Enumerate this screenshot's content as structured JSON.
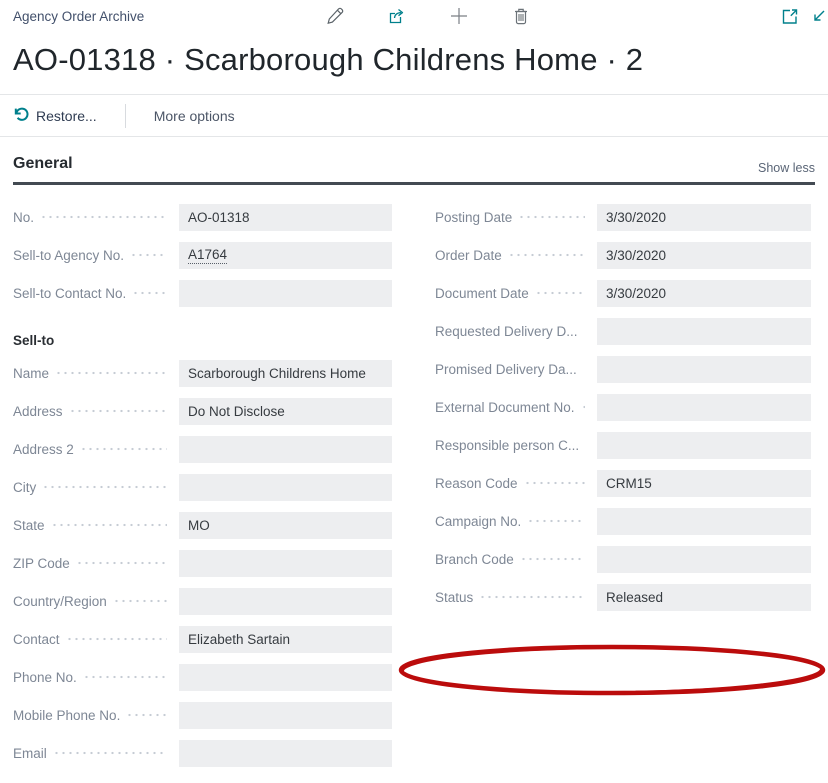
{
  "header": {
    "breadcrumb": "Agency Order Archive",
    "icons": {
      "edit": "pencil-icon",
      "share": "share-icon",
      "new": "plus-icon",
      "delete": "trash-icon",
      "open_window": "open-in-new-window-icon",
      "collapse": "arrow-down-left-icon"
    }
  },
  "title": "AO-01318 · Scarborough Childrens Home · 2",
  "action_bar": {
    "restore_label": "Restore...",
    "more_options_label": "More options"
  },
  "general": {
    "heading": "General",
    "show_less_label": "Show less"
  },
  "fields": {
    "left": [
      {
        "type": "field",
        "label": "No.",
        "value": "AO-01318"
      },
      {
        "type": "field",
        "label": "Sell-to Agency No.",
        "value": "A1764",
        "link": true
      },
      {
        "type": "field",
        "label": "Sell-to Contact No.",
        "value": ""
      },
      {
        "type": "subheading",
        "label": "Sell-to"
      },
      {
        "type": "field",
        "label": "Name",
        "value": "Scarborough Childrens Home"
      },
      {
        "type": "field",
        "label": "Address",
        "value": "Do Not Disclose"
      },
      {
        "type": "field",
        "label": "Address 2",
        "value": ""
      },
      {
        "type": "field",
        "label": "City",
        "value": ""
      },
      {
        "type": "field",
        "label": "State",
        "value": "MO"
      },
      {
        "type": "field",
        "label": "ZIP Code",
        "value": ""
      },
      {
        "type": "field",
        "label": "Country/Region",
        "value": ""
      },
      {
        "type": "field",
        "label": "Contact",
        "value": "Elizabeth Sartain"
      },
      {
        "type": "field",
        "label": "Phone No.",
        "value": ""
      },
      {
        "type": "field",
        "label": "Mobile Phone No.",
        "value": ""
      },
      {
        "type": "field",
        "label": "Email",
        "value": ""
      }
    ],
    "right": [
      {
        "type": "field",
        "label": "Posting Date",
        "value": "3/30/2020"
      },
      {
        "type": "field",
        "label": "Order Date",
        "value": "3/30/2020"
      },
      {
        "type": "field",
        "label": "Document Date",
        "value": "3/30/2020"
      },
      {
        "type": "field",
        "label": "Requested Delivery D...",
        "value": ""
      },
      {
        "type": "field",
        "label": "Promised Delivery Da...",
        "value": ""
      },
      {
        "type": "field",
        "label": "External Document No.",
        "value": ""
      },
      {
        "type": "field",
        "label": "Responsible person C...",
        "value": ""
      },
      {
        "type": "field",
        "label": "Reason Code",
        "value": "CRM15",
        "annotated": true
      },
      {
        "type": "field",
        "label": "Campaign No.",
        "value": ""
      },
      {
        "type": "field",
        "label": "Branch Code",
        "value": ""
      },
      {
        "type": "field",
        "label": "Status",
        "value": "Released"
      }
    ]
  },
  "annotation": {
    "shape": "ellipse",
    "color": "#bb0c0c",
    "target_field": "Reason Code"
  },
  "colors": {
    "accent_teal": "#00808c",
    "breadcrumb": "#42506b",
    "field_box_bg": "#edeef0",
    "section_rule": "#434a52",
    "annotation_red": "#bb0c0c"
  }
}
